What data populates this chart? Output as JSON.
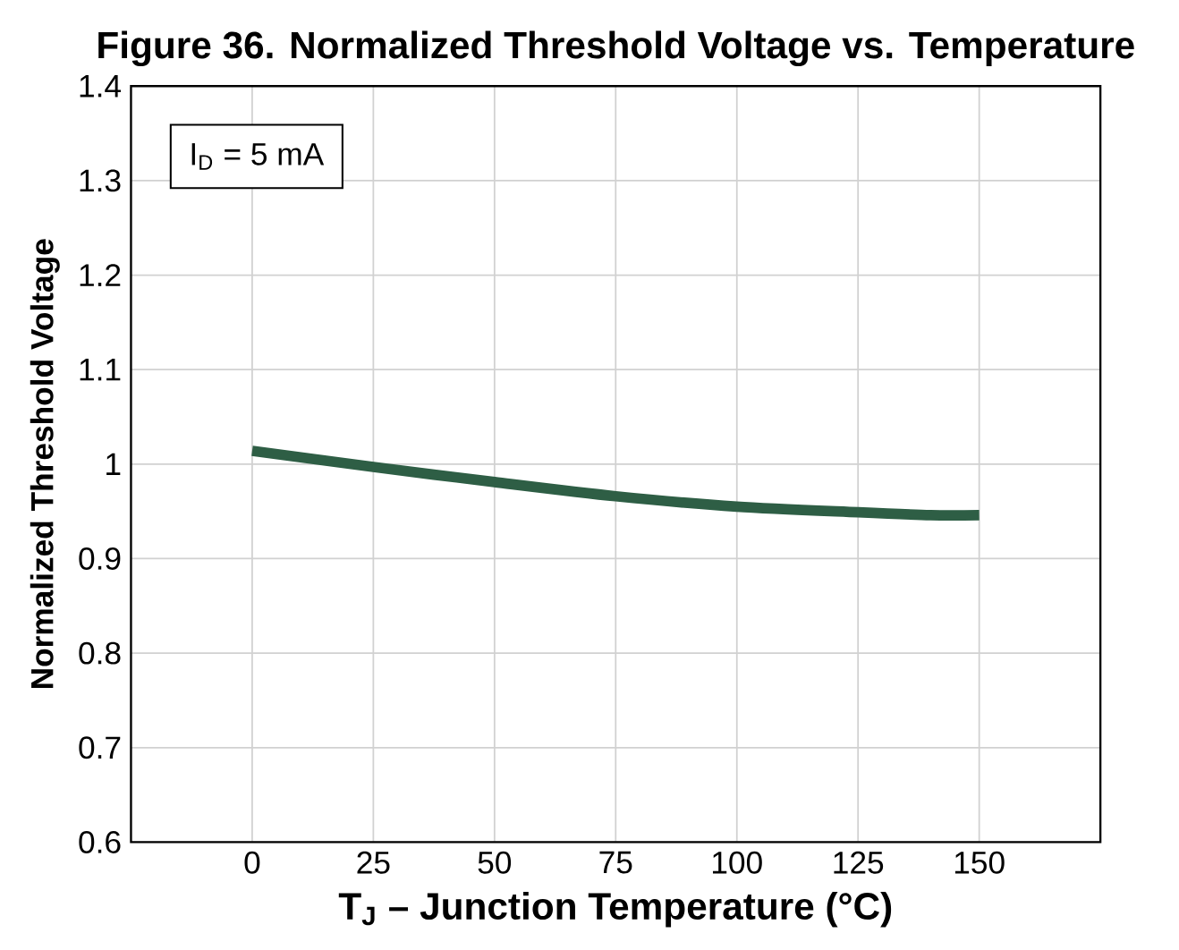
{
  "chart_data": {
    "type": "line",
    "title": "Figure 36. Normalized Threshold Voltage vs. Temperature",
    "xlabel": "T$_{J}$ – Junction Temperature (°C)",
    "ylabel": "Normalized Threshold Voltage",
    "x": [
      0,
      25,
      50,
      75,
      100,
      125,
      140,
      150
    ],
    "series": [
      {
        "color": "#2e5e45",
        "values": [
          1.014,
          0.997,
          0.981,
          0.966,
          0.955,
          0.949,
          0.946,
          0.946
        ]
      }
    ],
    "xlim": [
      -25,
      175
    ],
    "ylim": [
      0.6,
      1.4
    ],
    "xticks": [
      0,
      25,
      50,
      75,
      100,
      125,
      150
    ],
    "yticks": [
      0.6,
      0.7,
      0.8,
      0.9,
      1,
      1.1,
      1.2,
      1.3,
      1.4
    ],
    "grid": true,
    "marker": "none",
    "line_style": "solid",
    "annotations": [
      "I$_{D}$ = 5 mA"
    ]
  }
}
